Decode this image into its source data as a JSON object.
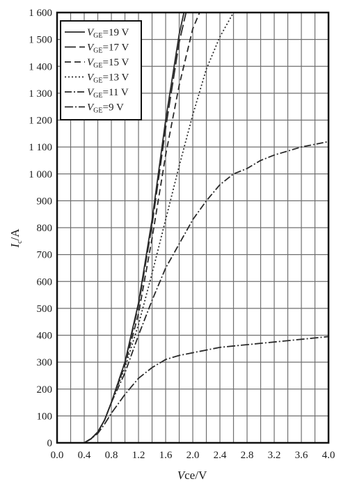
{
  "chart_data": {
    "type": "line",
    "title": "",
    "xlabel": {
      "var": "V",
      "sub": "ce",
      "unit": "/V"
    },
    "ylabel": {
      "var": "I",
      "sub": "c",
      "unit": "/A"
    },
    "xlim": [
      0.0,
      4.0
    ],
    "ylim": [
      0,
      1600
    ],
    "grid": true,
    "legend_position": "top-left",
    "x_ticks": [
      "0.0",
      "0.4",
      "0.8",
      "1.2",
      "1.6",
      "2.0",
      "2.4",
      "2.8",
      "3.2",
      "3.6",
      "4.0"
    ],
    "y_ticks": [
      "0",
      "100",
      "200",
      "300",
      "400",
      "500",
      "600",
      "700",
      "800",
      "900",
      "1 000",
      "1 100",
      "1 200",
      "1 300",
      "1 400",
      "1 500",
      "1 600"
    ],
    "series": [
      {
        "name_var": "V",
        "name_sub": "GE",
        "name_rest": "=19 V",
        "dash": "solid",
        "points": [
          [
            0.4,
            0
          ],
          [
            0.5,
            15
          ],
          [
            0.6,
            40
          ],
          [
            0.7,
            85
          ],
          [
            0.8,
            150
          ],
          [
            1.0,
            300
          ],
          [
            1.2,
            520
          ],
          [
            1.4,
            830
          ],
          [
            1.6,
            1200
          ],
          [
            1.8,
            1520
          ],
          [
            1.87,
            1600
          ]
        ]
      },
      {
        "name_var": "V",
        "name_sub": "GE",
        "name_rest": "=17 V",
        "dash": "long-dash",
        "points": [
          [
            0.4,
            0
          ],
          [
            0.5,
            15
          ],
          [
            0.6,
            40
          ],
          [
            0.7,
            85
          ],
          [
            0.8,
            150
          ],
          [
            1.0,
            300
          ],
          [
            1.2,
            510
          ],
          [
            1.4,
            810
          ],
          [
            1.6,
            1170
          ],
          [
            1.8,
            1490
          ],
          [
            1.9,
            1600
          ]
        ]
      },
      {
        "name_var": "V",
        "name_sub": "GE",
        "name_rest": "=15 V",
        "dash": "dash",
        "points": [
          [
            0.4,
            0
          ],
          [
            0.5,
            15
          ],
          [
            0.6,
            40
          ],
          [
            0.7,
            85
          ],
          [
            0.8,
            150
          ],
          [
            1.0,
            290
          ],
          [
            1.2,
            480
          ],
          [
            1.4,
            760
          ],
          [
            1.6,
            1070
          ],
          [
            1.8,
            1330
          ],
          [
            2.0,
            1540
          ],
          [
            2.1,
            1600
          ]
        ]
      },
      {
        "name_var": "V",
        "name_sub": "GE",
        "name_rest": "=13 V",
        "dash": "dot",
        "points": [
          [
            0.4,
            0
          ],
          [
            0.5,
            15
          ],
          [
            0.6,
            40
          ],
          [
            0.7,
            85
          ],
          [
            0.8,
            150
          ],
          [
            1.0,
            280
          ],
          [
            1.2,
            440
          ],
          [
            1.4,
            630
          ],
          [
            1.6,
            830
          ],
          [
            1.8,
            1030
          ],
          [
            2.0,
            1220
          ],
          [
            2.2,
            1390
          ],
          [
            2.4,
            1510
          ],
          [
            2.6,
            1600
          ]
        ]
      },
      {
        "name_var": "V",
        "name_sub": "GE",
        "name_rest": "=11 V",
        "dash": "dash-dot",
        "points": [
          [
            0.4,
            0
          ],
          [
            0.5,
            15
          ],
          [
            0.6,
            40
          ],
          [
            0.7,
            85
          ],
          [
            0.8,
            150
          ],
          [
            1.0,
            260
          ],
          [
            1.2,
            400
          ],
          [
            1.4,
            530
          ],
          [
            1.6,
            650
          ],
          [
            1.8,
            740
          ],
          [
            2.0,
            830
          ],
          [
            2.2,
            900
          ],
          [
            2.4,
            960
          ],
          [
            2.6,
            1000
          ],
          [
            2.8,
            1020
          ],
          [
            3.0,
            1050
          ],
          [
            3.2,
            1070
          ],
          [
            3.6,
            1100
          ],
          [
            4.0,
            1120
          ]
        ]
      },
      {
        "name_var": "V",
        "name_sub": "GE",
        "name_rest": "=9 V",
        "dash": "dash-dot-fine",
        "points": [
          [
            0.4,
            0
          ],
          [
            0.5,
            15
          ],
          [
            0.6,
            35
          ],
          [
            0.7,
            70
          ],
          [
            0.8,
            110
          ],
          [
            1.0,
            180
          ],
          [
            1.2,
            240
          ],
          [
            1.4,
            280
          ],
          [
            1.6,
            310
          ],
          [
            1.8,
            325
          ],
          [
            2.0,
            335
          ],
          [
            2.4,
            355
          ],
          [
            2.8,
            365
          ],
          [
            3.2,
            375
          ],
          [
            3.6,
            385
          ],
          [
            4.0,
            395
          ]
        ]
      }
    ]
  }
}
